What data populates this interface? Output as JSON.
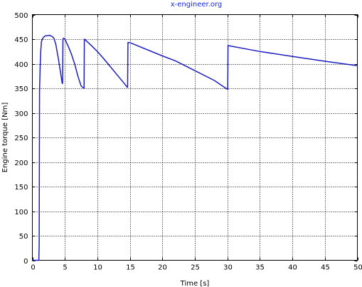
{
  "chart_data": {
    "type": "line",
    "title": "x-engineer.org",
    "xlabel": "Time [s]",
    "ylabel": "Engine torque [Nm]",
    "xlim": [
      0,
      50
    ],
    "ylim": [
      0,
      500
    ],
    "x_ticks": [
      0,
      5,
      10,
      15,
      20,
      25,
      30,
      35,
      40,
      45,
      50
    ],
    "y_ticks": [
      0,
      50,
      100,
      150,
      200,
      250,
      300,
      350,
      400,
      450,
      500
    ],
    "grid": true,
    "colors": {
      "line": "#1f1fbf",
      "title": "#1a2ad6",
      "grid": "#000000"
    },
    "series": [
      {
        "x": [
          0,
          1.0,
          1.05,
          1.1,
          1.2,
          1.3,
          1.4,
          1.6,
          1.8,
          2.0,
          2.3,
          2.6,
          3.0,
          3.3,
          3.6,
          4.0,
          4.3,
          4.6,
          4.65,
          4.7,
          4.8,
          5.0,
          5.5,
          6.0,
          6.5,
          7.0,
          7.5,
          7.9,
          7.95,
          8.0,
          8.2,
          9.0,
          10.0,
          11.0,
          12.0,
          13.0,
          14.0,
          14.6,
          14.65,
          14.7,
          15.0,
          20.0,
          22.0,
          25.0,
          28.0,
          30.0,
          30.05,
          30.1,
          35.0,
          40.0,
          45.0,
          50.0
        ],
        "y": [
          0,
          0,
          33,
          345,
          395,
          428,
          445,
          452,
          455,
          457,
          457,
          458,
          456,
          452,
          440,
          410,
          385,
          360,
          360,
          450,
          452,
          450,
          436,
          420,
          400,
          375,
          355,
          350,
          350,
          450,
          448,
          438,
          425,
          410,
          394,
          378,
          362,
          352,
          352,
          443,
          443,
          416,
          406,
          386,
          366,
          348,
          348,
          437,
          425,
          415,
          405,
          396
        ]
      }
    ]
  }
}
